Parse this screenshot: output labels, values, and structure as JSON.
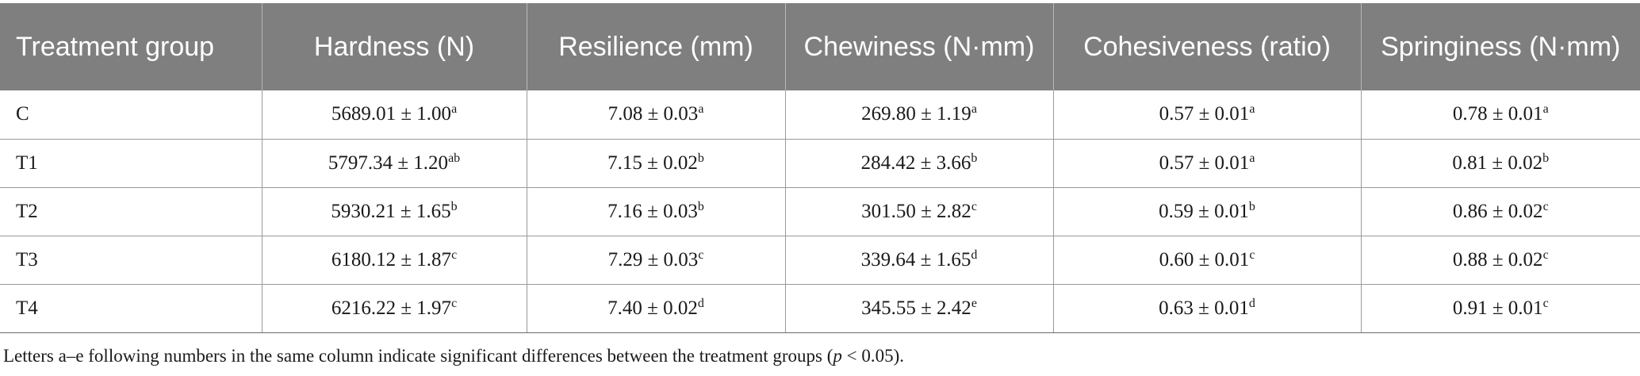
{
  "table": {
    "headers": [
      "Treatment group",
      "Hardness (N)",
      "Resilience (mm)",
      "Chewiness (N·mm)",
      "Cohesiveness (ratio)",
      "Springiness (N·mm)"
    ],
    "rows": [
      {
        "group": "C",
        "cells": [
          {
            "v": "5689.01 ± 1.00",
            "sup": "a"
          },
          {
            "v": "7.08 ± 0.03",
            "sup": "a"
          },
          {
            "v": "269.80 ± 1.19",
            "sup": "a"
          },
          {
            "v": "0.57 ± 0.01",
            "sup": "a"
          },
          {
            "v": "0.78 ± 0.01",
            "sup": "a"
          }
        ]
      },
      {
        "group": "T1",
        "cells": [
          {
            "v": "5797.34 ± 1.20",
            "sup": "ab"
          },
          {
            "v": "7.15 ± 0.02",
            "sup": "b"
          },
          {
            "v": "284.42 ± 3.66",
            "sup": "b"
          },
          {
            "v": "0.57 ± 0.01",
            "sup": "a"
          },
          {
            "v": "0.81 ± 0.02",
            "sup": "b"
          }
        ]
      },
      {
        "group": "T2",
        "cells": [
          {
            "v": "5930.21 ± 1.65",
            "sup": "b"
          },
          {
            "v": "7.16 ± 0.03",
            "sup": "b"
          },
          {
            "v": "301.50 ± 2.82",
            "sup": "c"
          },
          {
            "v": "0.59 ± 0.01",
            "sup": "b"
          },
          {
            "v": "0.86 ± 0.02",
            "sup": "c"
          }
        ]
      },
      {
        "group": "T3",
        "cells": [
          {
            "v": "6180.12 ± 1.87",
            "sup": "c"
          },
          {
            "v": "7.29 ± 0.03",
            "sup": "c"
          },
          {
            "v": "339.64 ± 1.65",
            "sup": "d"
          },
          {
            "v": "0.60 ± 0.01",
            "sup": "c"
          },
          {
            "v": "0.88 ± 0.02",
            "sup": "c"
          }
        ]
      },
      {
        "group": "T4",
        "cells": [
          {
            "v": "6216.22 ± 1.97",
            "sup": "c"
          },
          {
            "v": "7.40 ± 0.02",
            "sup": "d"
          },
          {
            "v": "345.55 ± 2.42",
            "sup": "e"
          },
          {
            "v": "0.63 ± 0.01",
            "sup": "d"
          },
          {
            "v": "0.91 ± 0.01",
            "sup": "c"
          }
        ]
      }
    ]
  },
  "footnote": {
    "before": "Letters a–e following numbers in the same column indicate significant differences between the treatment groups (",
    "p": "p",
    "after": " < 0.05)."
  },
  "colors": {
    "header_bg": "#7f7f7f",
    "header_text": "#ffffff",
    "rule": "#9a9a9a"
  }
}
